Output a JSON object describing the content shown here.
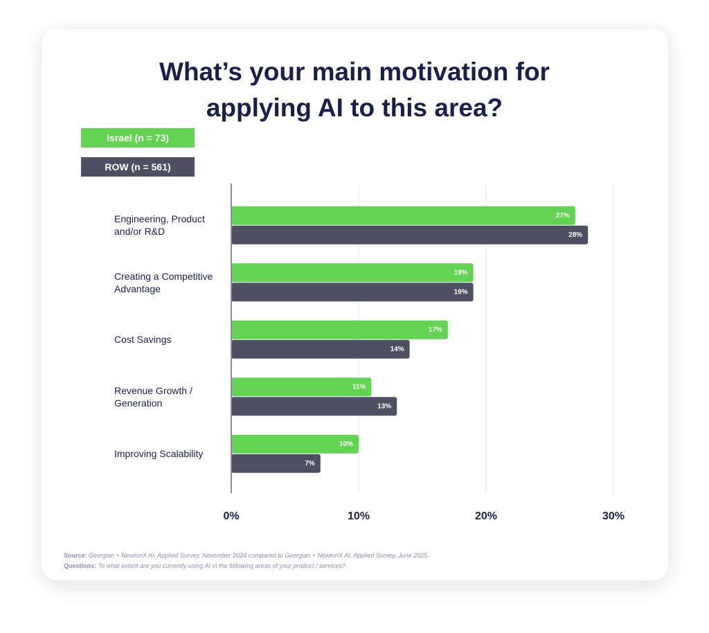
{
  "chart_data": {
    "type": "bar",
    "orientation": "horizontal",
    "title": "What’s your main motivation for applying AI to this area?",
    "categories": [
      "Engineering, Product and/or R&D",
      "Creating a Competitive Advantage",
      "Cost Savings",
      "Revenue Growth / Generation",
      "Improving Scalability"
    ],
    "series": [
      {
        "name": "Israel (n = 73)",
        "color": "#63d451",
        "values": [
          27,
          19,
          17,
          11,
          10
        ],
        "value_labels": [
          "27%",
          "19%",
          "17%",
          "11%",
          "10%"
        ]
      },
      {
        "name": "ROW (n = 561)",
        "color": "#4f4f63",
        "values": [
          28,
          19,
          14,
          13,
          7
        ],
        "value_labels": [
          "28%",
          "19%",
          "14%",
          "13%",
          "7%"
        ]
      }
    ],
    "xlim": [
      0,
      30
    ],
    "xticks": [
      {
        "value": 0,
        "label": "0%"
      },
      {
        "value": 10,
        "label": "10%"
      },
      {
        "value": 20,
        "label": "20%"
      },
      {
        "value": 30,
        "label": "30%"
      }
    ],
    "grid": true,
    "source_label": "Source:",
    "source_text": "Georgian + NewtonX AI, Applied Survey, November 2024 compared to Georgian + NewtonX AI, Applied Survey, June 2025.",
    "question_label": "Questions:",
    "question_text": "To what extent are you currently using AI in the following areas of your product / services?"
  }
}
